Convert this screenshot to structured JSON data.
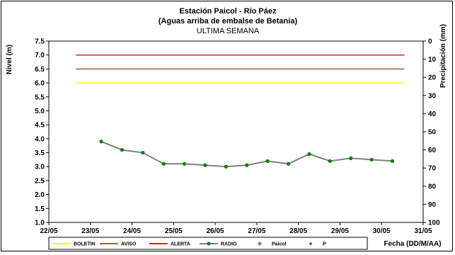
{
  "chart_data": {
    "type": "line",
    "title": "Estación Paicol  - Río Páez",
    "subtitle": "(Aguas arriba de embalse de Betania)",
    "subtitle2": "ULTIMA SEMANA",
    "ylabel": "Nivel (m)",
    "y2label": "Precipitación (mm)",
    "xlabel": "Fecha (DD/M/AA)",
    "ylim": [
      1.0,
      7.5
    ],
    "y2lim": [
      0,
      100
    ],
    "y2_inverted": true,
    "xlim": [
      0,
      9
    ],
    "x_ticks": [
      "22/05",
      "23/05",
      "24/05",
      "25/05",
      "26/05",
      "27/05",
      "28/05",
      "29/05",
      "30/05",
      "31/05"
    ],
    "y_ticks": [
      "1.0",
      "1.5",
      "2.0",
      "2.5",
      "3.0",
      "3.5",
      "4.0",
      "4.5",
      "5.0",
      "5.5",
      "6.0",
      "6.5",
      "7.0",
      "7.5"
    ],
    "y2_ticks": [
      "0",
      "10",
      "20",
      "30",
      "40",
      "50",
      "60",
      "70",
      "80",
      "90",
      "100"
    ],
    "thresholds": [
      {
        "name": "BOLETIN",
        "value": 6.0,
        "color": "#ffff00",
        "x_range": [
          0.65,
          8.55
        ]
      },
      {
        "name": "AVISO",
        "value": 6.5,
        "color": "#996633",
        "x_range": [
          0.65,
          8.55
        ]
      },
      {
        "name": "ALERTA",
        "value": 7.0,
        "color": "#e02020",
        "x_range": [
          0.65,
          8.55
        ]
      }
    ],
    "series": [
      {
        "name": "RADIO",
        "color": "#808080",
        "marker_color": "#008000",
        "x": [
          1.26,
          1.76,
          2.26,
          2.76,
          3.26,
          3.76,
          4.26,
          4.76,
          5.26,
          5.76,
          6.26,
          6.76,
          7.26,
          7.76,
          8.26
        ],
        "values": [
          3.9,
          3.6,
          3.5,
          3.1,
          3.1,
          3.05,
          3.0,
          3.05,
          3.2,
          3.1,
          3.45,
          3.2,
          3.3,
          3.25,
          3.2
        ]
      }
    ],
    "legend": [
      {
        "label": "BOLETIN",
        "kind": "line",
        "color": "#ffff00"
      },
      {
        "label": "AVISO",
        "kind": "line",
        "color": "#996633"
      },
      {
        "label": "ALERTA",
        "kind": "line",
        "color": "#e02020"
      },
      {
        "label": "RADIO",
        "kind": "line-marker",
        "color": "#808080",
        "marker": "#008000"
      },
      {
        "label": "Paicol",
        "kind": "diamond",
        "color": "#4a7fc0"
      },
      {
        "label": "P",
        "kind": "dot",
        "color": "#008000"
      }
    ],
    "legend_position": "bottom",
    "grid": false
  }
}
